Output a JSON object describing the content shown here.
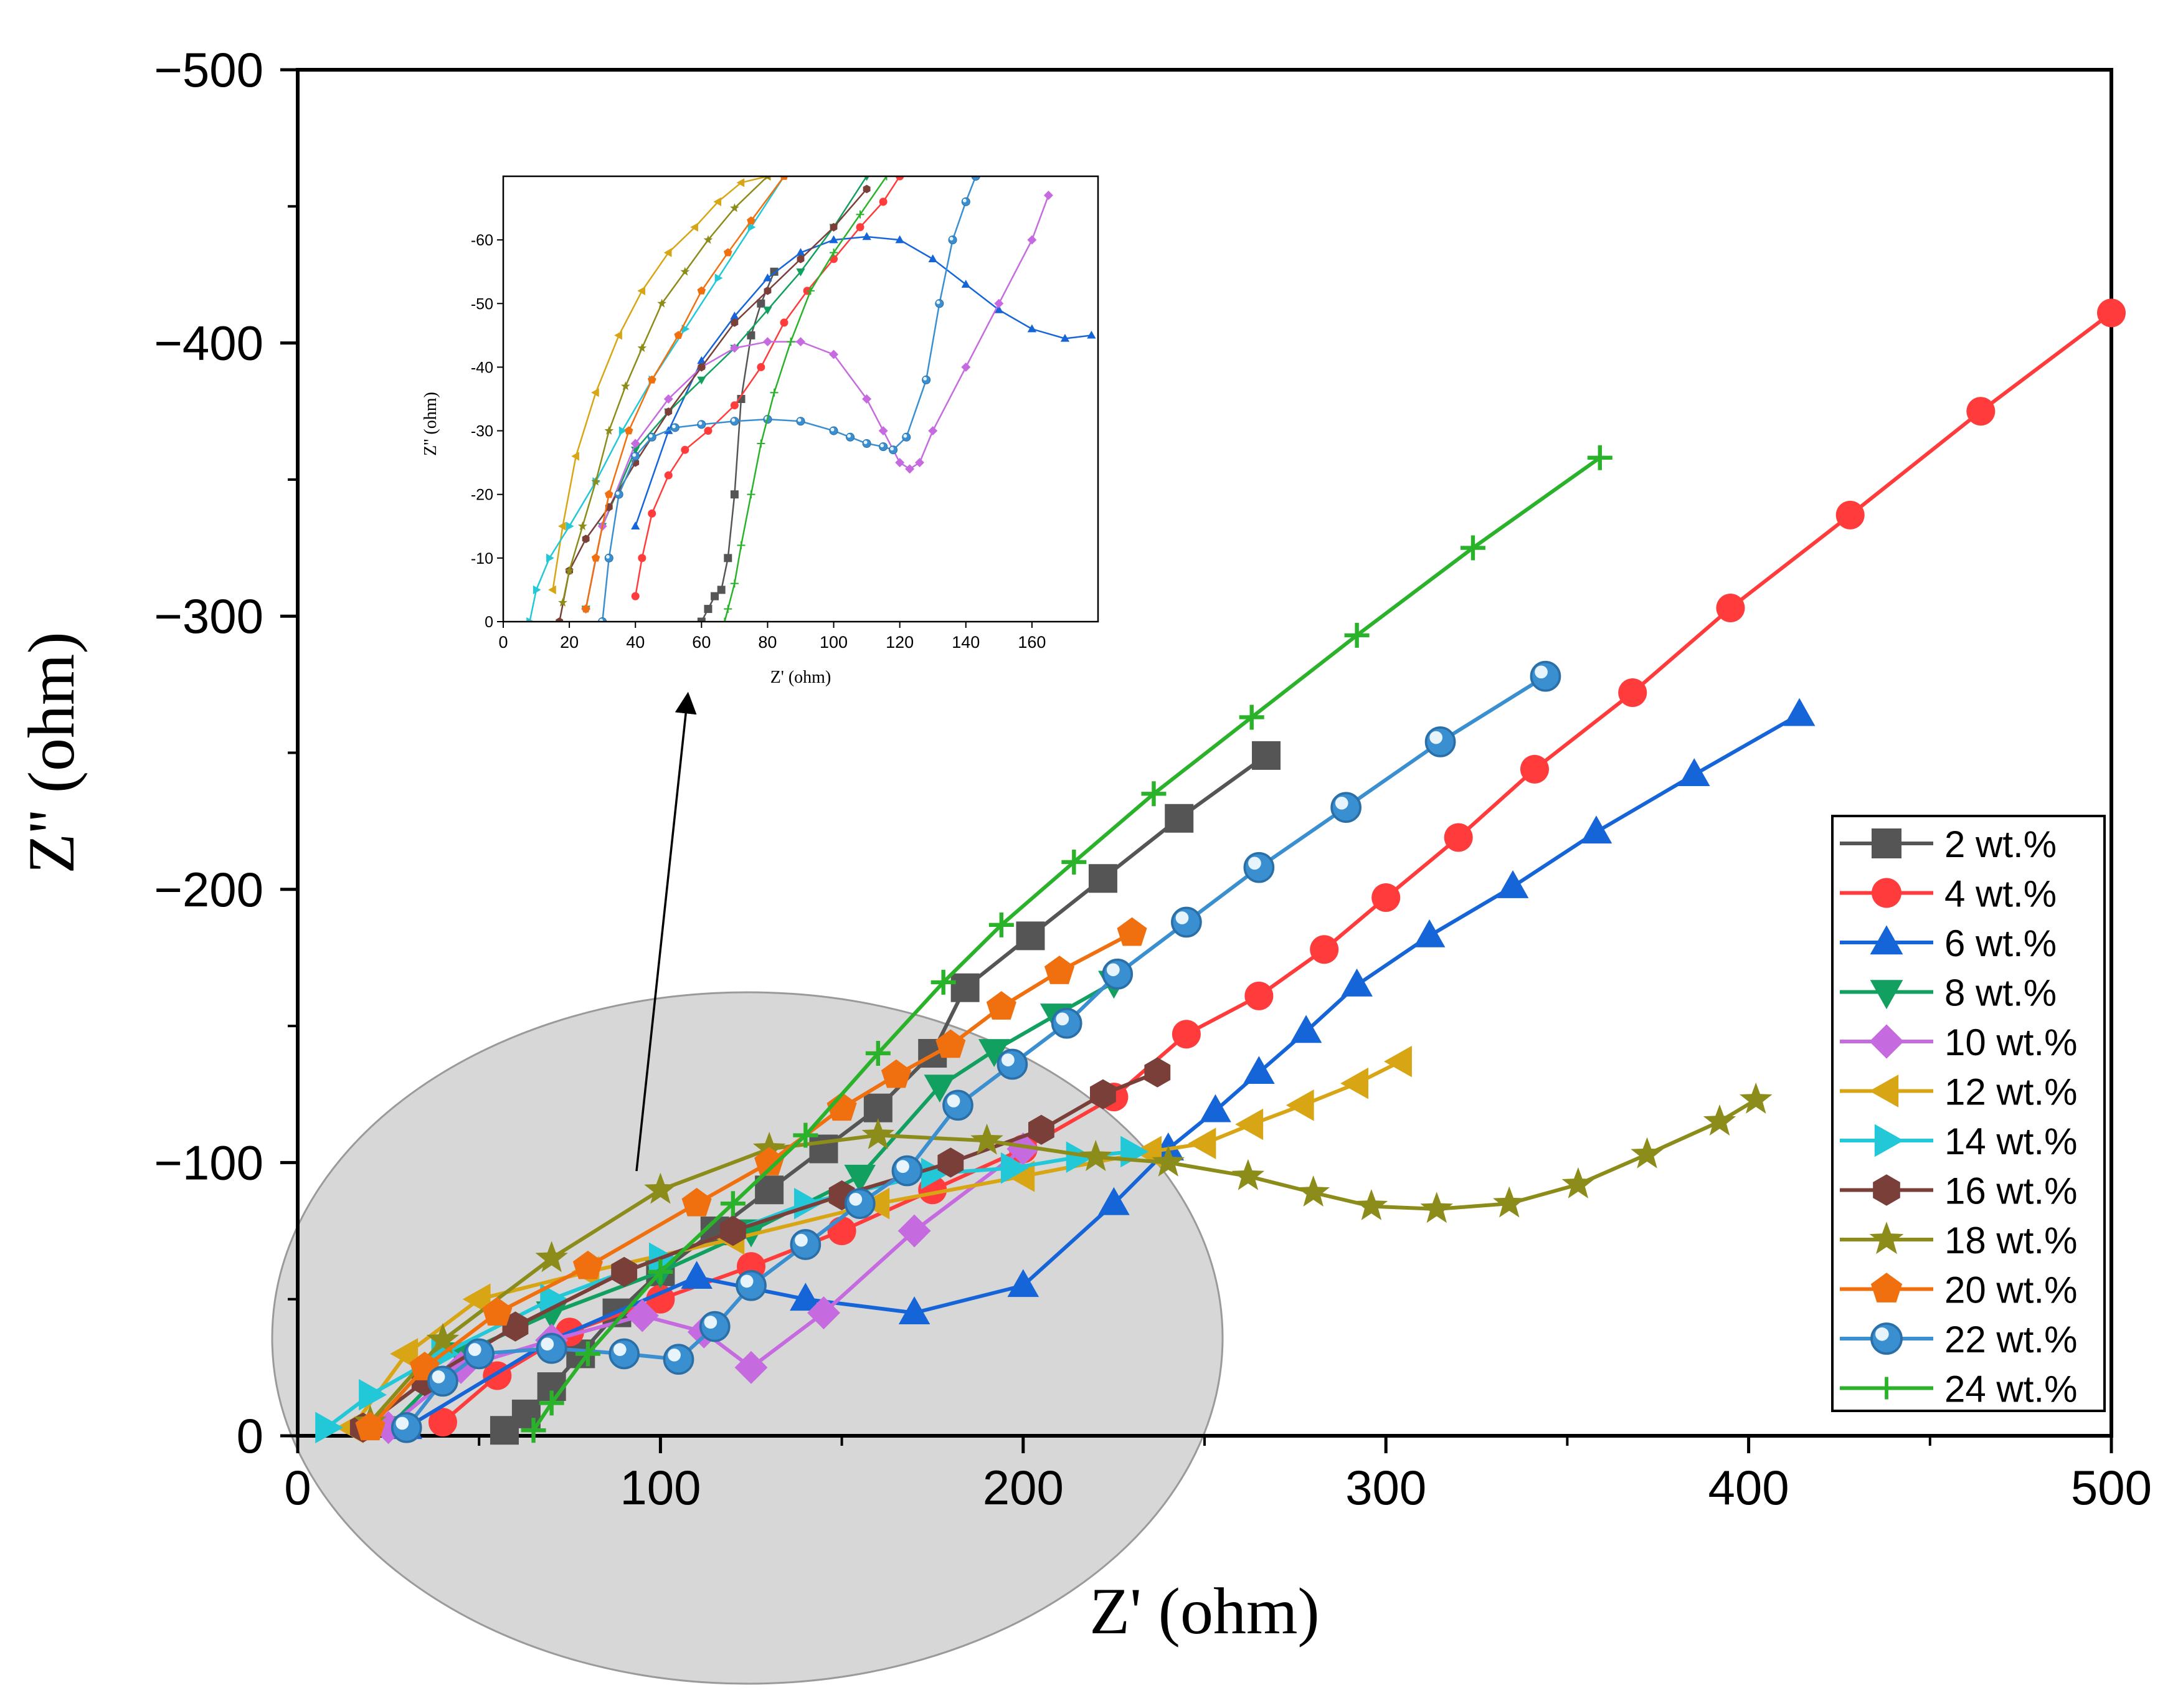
{
  "chart_data": [
    {
      "type": "scatter",
      "role": "main",
      "xlabel": "Z' (ohm)",
      "ylabel": "Z'' (ohm)",
      "xlim": [
        0,
        500
      ],
      "ylim": [
        0,
        -500
      ],
      "xticks": [
        0,
        100,
        200,
        300,
        400,
        500
      ],
      "yticks": [
        0,
        -100,
        -200,
        -300,
        -400,
        -500
      ],
      "xtick_labels": [
        "0",
        "100",
        "200",
        "300",
        "400",
        "500"
      ],
      "ytick_labels": [
        "0",
        "−100",
        "−200",
        "−300",
        "−400",
        "−500"
      ],
      "legend_position": "right",
      "grid": false,
      "highlight": "gray ellipse over the low-impedance region with an arrow pointing to the inset",
      "series": [
        {
          "name": "2 wt.%",
          "color": "#555555",
          "marker": "square",
          "x": [
            57,
            63,
            70,
            78,
            88,
            100,
            115,
            130,
            145,
            160,
            175,
            184,
            202,
            222,
            243,
            267
          ],
          "y": [
            -2,
            -8,
            -18,
            -30,
            -45,
            -60,
            -75,
            -90,
            -105,
            -120,
            -140,
            -164,
            -183,
            -204,
            -226,
            -249
          ]
        },
        {
          "name": "4 wt.%",
          "color": "#ff3b3b",
          "marker": "circle",
          "x": [
            40,
            55,
            75,
            100,
            125,
            150,
            175,
            200,
            225,
            245,
            265,
            283,
            300,
            320,
            341,
            368,
            395,
            428,
            464,
            500
          ],
          "y": [
            -5,
            -22,
            -38,
            -50,
            -62,
            -75,
            -90,
            -105,
            -124,
            -147,
            -161,
            -178,
            -197,
            -219,
            -244,
            -272,
            -303,
            -337,
            -375,
            -411
          ]
        },
        {
          "name": "6 wt.%",
          "color": "#1565d8",
          "marker": "triangle-up",
          "x": [
            30,
            70,
            110,
            140,
            170,
            200,
            225,
            240,
            253,
            265,
            278,
            292,
            312,
            335,
            358,
            385,
            414
          ],
          "y": [
            -3,
            -35,
            -58,
            -50,
            -45,
            -55,
            -85,
            -105,
            -119,
            -133,
            -148,
            -165,
            -183,
            -201,
            -221,
            -242,
            -264
          ]
        },
        {
          "name": "8 wt.%",
          "color": "#12a060",
          "marker": "triangle-down",
          "x": [
            25,
            45,
            70,
            100,
            125,
            155,
            177,
            192,
            209,
            225
          ],
          "y": [
            -3,
            -30,
            -45,
            -60,
            -75,
            -95,
            -128,
            -141,
            -154,
            -166
          ]
        },
        {
          "name": "10 wt.%",
          "color": "#c66ae0",
          "marker": "diamond",
          "x": [
            25,
            45,
            70,
            95,
            112,
            125,
            145,
            170,
            200
          ],
          "y": [
            -3,
            -25,
            -35,
            -44,
            -38,
            -25,
            -45,
            -75,
            -105
          ]
        },
        {
          "name": "12 wt.%",
          "color": "#d8a515",
          "marker": "triangle-left",
          "x": [
            15,
            30,
            50,
            80,
            120,
            160,
            200,
            235,
            250,
            263,
            277,
            292,
            304
          ],
          "y": [
            -3,
            -30,
            -50,
            -60,
            -72,
            -85,
            -95,
            -104,
            -107,
            -114,
            -121,
            -129,
            -137
          ]
        },
        {
          "name": "14 wt.%",
          "color": "#22c8d8",
          "marker": "triangle-right",
          "x": [
            8,
            20,
            40,
            70,
            100,
            140,
            175,
            197,
            215,
            230
          ],
          "y": [
            -3,
            -15,
            -30,
            -50,
            -65,
            -85,
            -96,
            -98,
            -102,
            -104
          ]
        },
        {
          "name": "16 wt.%",
          "color": "#7a3f38",
          "marker": "hexagon",
          "x": [
            18,
            35,
            60,
            90,
            120,
            150,
            180,
            205,
            222,
            237
          ],
          "y": [
            -3,
            -20,
            -40,
            -60,
            -75,
            -88,
            -100,
            -112,
            -125,
            -133
          ]
        },
        {
          "name": "18 wt.%",
          "color": "#8c8c1a",
          "marker": "star",
          "x": [
            20,
            40,
            70,
            100,
            130,
            160,
            190,
            220,
            240,
            262,
            280,
            296,
            314,
            334,
            353,
            372,
            392,
            402
          ],
          "y": [
            -5,
            -35,
            -65,
            -90,
            -105,
            -110,
            -108,
            -102,
            -100,
            -95,
            -89,
            -84,
            -83,
            -85,
            -92,
            -103,
            -115,
            -123
          ]
        },
        {
          "name": "20 wt.%",
          "color": "#f07010",
          "marker": "pentagon",
          "x": [
            20,
            35,
            55,
            80,
            110,
            130,
            150,
            165,
            180,
            194,
            210,
            230
          ],
          "y": [
            -3,
            -25,
            -45,
            -62,
            -85,
            -100,
            -120,
            -132,
            -143,
            -157,
            -170,
            -184
          ]
        },
        {
          "name": "22 wt.%",
          "color": "#3a8fd0",
          "marker": "sphere",
          "x": [
            30,
            40,
            50,
            70,
            90,
            105,
            115,
            125,
            140,
            155,
            168,
            182,
            197,
            212,
            226,
            245,
            265,
            289,
            315,
            344
          ],
          "y": [
            -3,
            -20,
            -30,
            -32,
            -30,
            -28,
            -40,
            -55,
            -70,
            -85,
            -97,
            -121,
            -136,
            -151,
            -169,
            -188,
            -208,
            -230,
            -254,
            -278
          ]
        },
        {
          "name": "24 wt.%",
          "color": "#2ab22a",
          "marker": "plus",
          "x": [
            65,
            70,
            80,
            100,
            120,
            140,
            160,
            178,
            194,
            214,
            236,
            263,
            292,
            324,
            359
          ],
          "y": [
            -2,
            -12,
            -30,
            -60,
            -85,
            -110,
            -140,
            -166,
            -187,
            -210,
            -235,
            -263,
            -293,
            -325,
            -358
          ]
        }
      ]
    },
    {
      "type": "scatter",
      "role": "inset",
      "xlabel": "Z' (ohm)",
      "ylabel": "Z'' (ohm)",
      "xlim": [
        0,
        180
      ],
      "ylim": [
        0,
        -70
      ],
      "xticks": [
        0,
        20,
        40,
        60,
        80,
        100,
        120,
        140,
        160
      ],
      "yticks": [
        0,
        -10,
        -20,
        -30,
        -40,
        -50,
        -60
      ],
      "xtick_labels": [
        "0",
        "20",
        "40",
        "60",
        "80",
        "100",
        "120",
        "140",
        "160"
      ],
      "ytick_labels": [
        "0",
        "-10",
        "-20",
        "-30",
        "-40",
        "-50",
        "-60"
      ],
      "series": [
        {
          "name": "2 wt.%",
          "color": "#555555",
          "marker": "square",
          "x": [
            60,
            62,
            64,
            66,
            68,
            70,
            72,
            75,
            78,
            82
          ],
          "y": [
            0,
            -2,
            -4,
            -5,
            -10,
            -20,
            -35,
            -45,
            -50,
            -55
          ]
        },
        {
          "name": "4 wt.%",
          "color": "#ff3b3b",
          "marker": "circle",
          "x": [
            40,
            42,
            45,
            50,
            55,
            62,
            70,
            78,
            85,
            92,
            100,
            108,
            115,
            120
          ],
          "y": [
            -4,
            -10,
            -17,
            -23,
            -27,
            -30,
            -34,
            -40,
            -47,
            -52,
            -57,
            -62,
            -66,
            -70
          ]
        },
        {
          "name": "6 wt.%",
          "color": "#1565d8",
          "marker": "triangle-up",
          "x": [
            40,
            50,
            60,
            70,
            80,
            90,
            100,
            110,
            120,
            130,
            140,
            150,
            160,
            170,
            178
          ],
          "y": [
            -15,
            -30,
            -41,
            -48,
            -54,
            -58,
            -60,
            -60.5,
            -60,
            -57,
            -53,
            -49,
            -46,
            -44.5,
            -45
          ]
        },
        {
          "name": "8 wt.%",
          "color": "#12a060",
          "marker": "triangle-down",
          "x": [
            25,
            30,
            40,
            50,
            60,
            70,
            80,
            90,
            100,
            110
          ],
          "y": [
            -2,
            -15,
            -27,
            -33,
            -38,
            -43,
            -49,
            -55,
            -62,
            -70
          ]
        },
        {
          "name": "10 wt.%",
          "color": "#c66ae0",
          "marker": "diamond",
          "x": [
            25,
            30,
            40,
            50,
            60,
            70,
            80,
            90,
            100,
            110,
            115,
            120,
            123,
            126,
            130,
            140,
            150,
            160,
            165
          ],
          "y": [
            -2,
            -15,
            -28,
            -35,
            -40,
            -43,
            -44,
            -44,
            -42,
            -35,
            -30,
            -25,
            -24,
            -25,
            -30,
            -40,
            -50,
            -60,
            -67
          ]
        },
        {
          "name": "12 wt.%",
          "color": "#d8a515",
          "marker": "triangle-left",
          "x": [
            15,
            18,
            22,
            28,
            35,
            42,
            50,
            58,
            65,
            72,
            80
          ],
          "y": [
            -5,
            -15,
            -26,
            -36,
            -45,
            -52,
            -58,
            -62,
            -66,
            -69,
            -70
          ]
        },
        {
          "name": "14 wt.%",
          "color": "#22c8d8",
          "marker": "triangle-right",
          "x": [
            8,
            10,
            14,
            20,
            28,
            36,
            45,
            55,
            65,
            75,
            85
          ],
          "y": [
            0,
            -5,
            -10,
            -15,
            -22,
            -30,
            -38,
            -46,
            -54,
            -62,
            -70
          ]
        },
        {
          "name": "16 wt.%",
          "color": "#7a3f38",
          "marker": "hexagon",
          "x": [
            17,
            20,
            25,
            32,
            40,
            50,
            60,
            70,
            80,
            90,
            100,
            110
          ],
          "y": [
            0,
            -8,
            -13,
            -18,
            -25,
            -33,
            -40,
            -47,
            -52,
            -57,
            -62,
            -68
          ]
        },
        {
          "name": "18 wt.%",
          "color": "#8c8c1a",
          "marker": "star",
          "x": [
            18,
            20,
            24,
            28,
            32,
            37,
            42,
            48,
            55,
            62,
            70,
            80
          ],
          "y": [
            -3,
            -8,
            -15,
            -22,
            -30,
            -37,
            -43,
            -50,
            -55,
            -60,
            -65,
            -70
          ]
        },
        {
          "name": "20 wt.%",
          "color": "#f07010",
          "marker": "pentagon",
          "x": [
            25,
            28,
            32,
            38,
            45,
            53,
            60,
            68,
            75,
            85
          ],
          "y": [
            -2,
            -10,
            -20,
            -30,
            -38,
            -45,
            -52,
            -58,
            -63,
            -70
          ]
        },
        {
          "name": "22 wt.%",
          "color": "#3a8fd0",
          "marker": "sphere",
          "x": [
            30,
            32,
            35,
            40,
            45,
            52,
            60,
            70,
            80,
            90,
            100,
            105,
            110,
            115,
            118,
            122,
            128,
            132,
            136,
            140,
            143
          ],
          "y": [
            0,
            -10,
            -20,
            -26,
            -29,
            -30.5,
            -31,
            -31.5,
            -31.8,
            -31.5,
            -30,
            -29,
            -28,
            -27.5,
            -27,
            -29,
            -38,
            -50,
            -60,
            -66,
            -70
          ]
        },
        {
          "name": "24 wt.%",
          "color": "#2ab22a",
          "marker": "plus",
          "x": [
            67,
            68,
            70,
            72,
            75,
            78,
            82,
            87,
            93,
            100,
            108,
            116
          ],
          "y": [
            0,
            -2,
            -6,
            -12,
            -20,
            -28,
            -36,
            -44,
            -52,
            -58,
            -64,
            -70
          ]
        }
      ]
    }
  ]
}
